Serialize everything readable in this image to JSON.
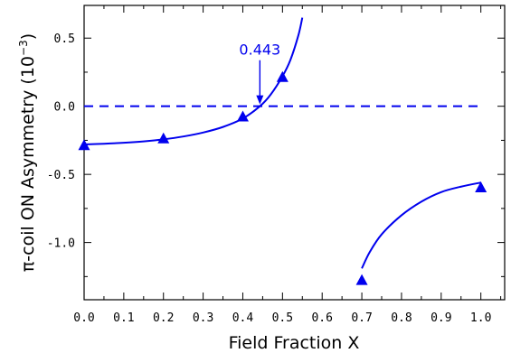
{
  "chart_data": {
    "type": "scatter",
    "title": "",
    "xlabel": "Field Fraction X",
    "ylabel": "π-coil ON Asymmetry (10⁻³)",
    "ylabel_base": "π-coil ON Asymmetry (10",
    "ylabel_exp": "−3",
    "ylabel_tail": ")",
    "xlim": [
      0.0,
      1.06
    ],
    "ylim": [
      -1.42,
      0.74
    ],
    "x_ticks": [
      0.0,
      0.1,
      0.2,
      0.3,
      0.4,
      0.5,
      0.6,
      0.7,
      0.8,
      0.9,
      1.0
    ],
    "x_tick_labels": [
      "0.0",
      "0.1",
      "0.2",
      "0.3",
      "0.4",
      "0.5",
      "0.6",
      "0.7",
      "0.8",
      "0.9",
      "1.0"
    ],
    "y_ticks": [
      0.5,
      0.0,
      -0.5,
      -1.0
    ],
    "y_tick_labels": [
      "0.5",
      "0.0",
      "-0.5",
      "-1.0"
    ],
    "grid": false,
    "color": "#0000ee",
    "series": [
      {
        "marker": "triangle",
        "x": [
          0.0,
          0.2,
          0.4,
          0.5,
          0.7,
          1.0
        ],
        "y": [
          -0.29,
          -0.24,
          -0.08,
          0.21,
          -1.28,
          -0.6
        ]
      }
    ],
    "fit_curves": [
      {
        "style": "solid",
        "x": [
          0.0,
          0.05,
          0.1,
          0.15,
          0.2,
          0.25,
          0.3,
          0.35,
          0.4,
          0.443,
          0.47,
          0.5,
          0.52,
          0.54,
          0.55
        ],
        "y": [
          -0.28,
          -0.275,
          -0.268,
          -0.258,
          -0.243,
          -0.222,
          -0.193,
          -0.152,
          -0.09,
          0.0,
          0.085,
          0.22,
          0.34,
          0.52,
          0.65
        ]
      },
      {
        "style": "solid",
        "x": [
          0.7,
          0.72,
          0.75,
          0.8,
          0.85,
          0.9,
          0.95,
          1.0
        ],
        "y": [
          -1.19,
          -1.07,
          -0.94,
          -0.8,
          -0.7,
          -0.63,
          -0.59,
          -0.56
        ]
      }
    ],
    "reference_line": {
      "style": "dashed",
      "y": 0.0,
      "x": [
        0.0,
        1.0
      ]
    },
    "annotation": {
      "text": "0.443",
      "x": 0.443,
      "y": 0.0
    }
  }
}
